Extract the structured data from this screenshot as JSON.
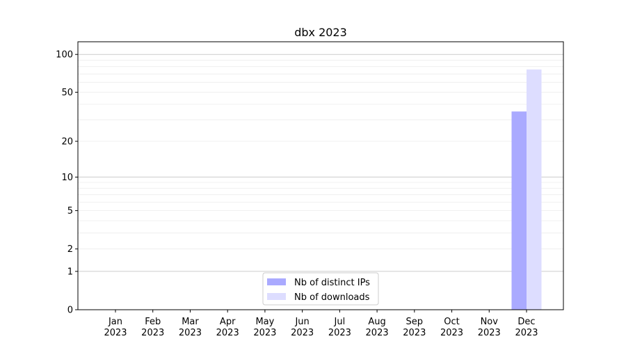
{
  "chart_data": {
    "type": "bar",
    "title": "dbx 2023",
    "xlabel": "",
    "ylabel": "",
    "yscale": "log(1+y)",
    "ylim": [
      0,
      120
    ],
    "yticks": [
      0,
      1,
      2,
      5,
      10,
      20,
      50,
      100
    ],
    "grid": true,
    "legend_placement": "bottom-center",
    "categories": [
      "Jan\n2023",
      "Feb\n2023",
      "Mar\n2023",
      "Apr\n2023",
      "May\n2023",
      "Jun\n2023",
      "Jul\n2023",
      "Aug\n2023",
      "Sep\n2023",
      "Oct\n2023",
      "Nov\n2023",
      "Dec\n2023"
    ],
    "series": [
      {
        "name": "Nb of distinct IPs",
        "color": "#aaaaff",
        "values": [
          0,
          0,
          0,
          0,
          0,
          0,
          0,
          0,
          0,
          0,
          0,
          35
        ]
      },
      {
        "name": "Nb of downloads",
        "color": "#ddddff",
        "values": [
          0,
          0,
          0,
          0,
          0,
          0,
          0,
          0,
          0,
          0,
          0,
          76
        ]
      }
    ]
  }
}
